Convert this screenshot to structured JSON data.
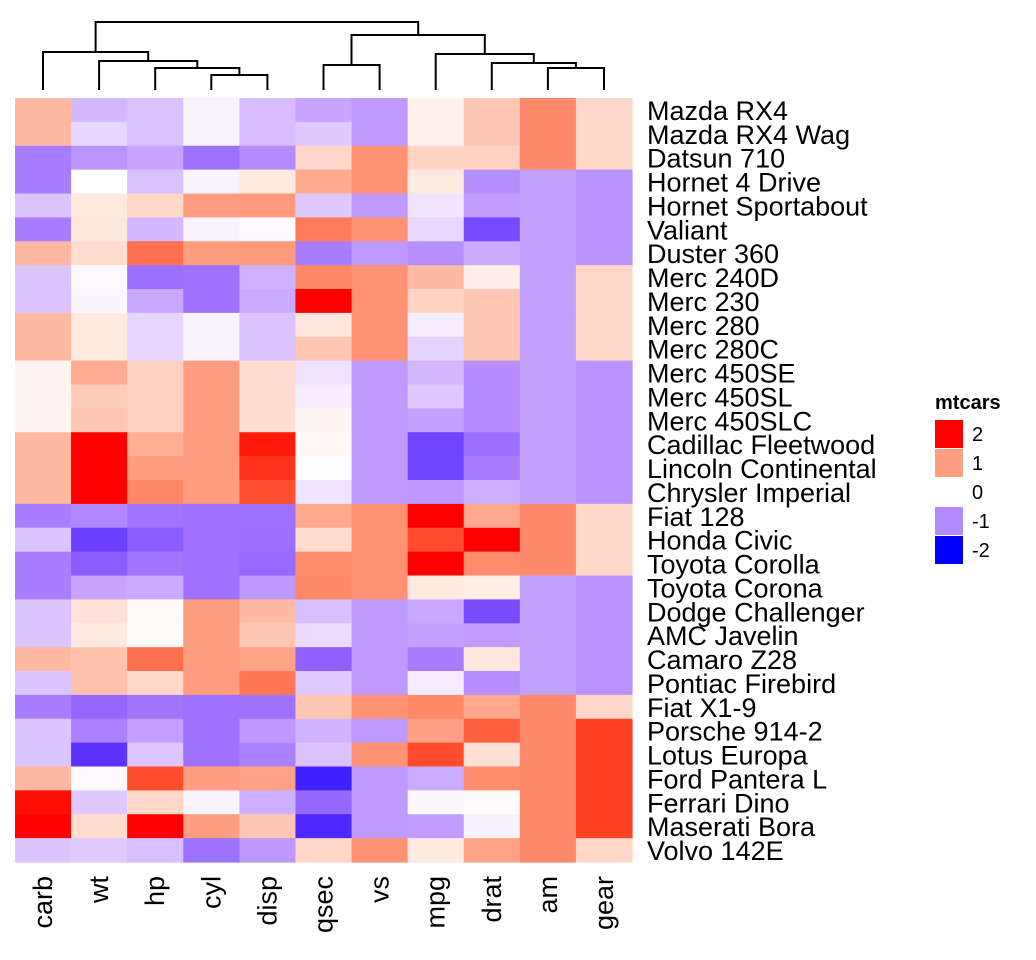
{
  "chart_data": {
    "type": "heatmap",
    "title": "",
    "columns": [
      "carb",
      "wt",
      "hp",
      "cyl",
      "disp",
      "qsec",
      "vs",
      "mpg",
      "drat",
      "am",
      "gear"
    ],
    "rows": [
      {
        "name": "Mazda RX4",
        "values": [
          0.74,
          -0.61,
          -0.54,
          -0.1,
          -0.57,
          -0.78,
          -0.87,
          0.15,
          0.57,
          1.19,
          0.42
        ]
      },
      {
        "name": "Mazda RX4 Wag",
        "values": [
          0.74,
          -0.35,
          -0.54,
          -0.1,
          -0.57,
          -0.46,
          -0.87,
          0.15,
          0.57,
          1.19,
          0.42
        ]
      },
      {
        "name": "Datsun 710",
        "values": [
          -1.12,
          -0.92,
          -0.78,
          -1.22,
          -0.99,
          0.43,
          1.12,
          0.45,
          0.47,
          1.19,
          0.42
        ]
      },
      {
        "name": "Hornet 4 Drive",
        "values": [
          -1.12,
          0.0,
          -0.54,
          -0.1,
          0.22,
          0.89,
          1.12,
          0.22,
          -0.97,
          -0.81,
          -0.93
        ]
      },
      {
        "name": "Hornet Sportabout",
        "values": [
          -0.5,
          0.23,
          0.41,
          1.01,
          1.04,
          -0.46,
          -0.87,
          -0.23,
          -0.84,
          -0.81,
          -0.93
        ]
      },
      {
        "name": "Valiant",
        "values": [
          -1.12,
          0.25,
          -0.61,
          -0.1,
          -0.05,
          1.33,
          1.12,
          -0.34,
          -1.56,
          -0.81,
          -0.93
        ]
      },
      {
        "name": "Duster 360",
        "values": [
          0.74,
          0.36,
          1.43,
          1.01,
          1.04,
          -1.12,
          -0.87,
          -0.96,
          -0.72,
          -0.81,
          -0.93
        ]
      },
      {
        "name": "Merc 240D",
        "values": [
          -0.5,
          -0.03,
          -1.24,
          -1.22,
          -0.68,
          1.2,
          1.12,
          0.72,
          0.18,
          -0.81,
          0.42
        ]
      },
      {
        "name": "Merc 230",
        "values": [
          -0.5,
          -0.07,
          -0.75,
          -1.22,
          -0.73,
          2.83,
          1.12,
          0.45,
          0.6,
          -0.81,
          0.42
        ]
      },
      {
        "name": "Merc 280",
        "values": [
          0.74,
          0.23,
          -0.35,
          -0.1,
          -0.51,
          0.25,
          1.12,
          -0.15,
          0.6,
          -0.81,
          0.42
        ]
      },
      {
        "name": "Merc 280C",
        "values": [
          0.74,
          0.23,
          -0.35,
          -0.1,
          -0.51,
          0.59,
          1.12,
          -0.38,
          0.6,
          -0.81,
          0.42
        ]
      },
      {
        "name": "Merc 450SE",
        "values": [
          0.12,
          0.87,
          0.49,
          1.01,
          0.36,
          -0.25,
          -0.87,
          -0.61,
          -0.98,
          -0.81,
          -0.93
        ]
      },
      {
        "name": "Merc 450SL",
        "values": [
          0.12,
          0.52,
          0.49,
          1.01,
          0.36,
          -0.14,
          -0.87,
          -0.47,
          -0.98,
          -0.81,
          -0.93
        ]
      },
      {
        "name": "Merc 450SLC",
        "values": [
          0.12,
          0.58,
          0.49,
          1.01,
          0.36,
          0.08,
          -0.87,
          -0.81,
          -0.98,
          -0.81,
          -0.93
        ]
      },
      {
        "name": "Cadillac Fleetwood",
        "values": [
          0.74,
          2.08,
          0.85,
          1.01,
          1.95,
          0.07,
          -0.87,
          -1.61,
          -1.25,
          -0.81,
          -0.93
        ]
      },
      {
        "name": "Lincoln Continental",
        "values": [
          0.74,
          2.26,
          1.0,
          1.01,
          1.85,
          -0.02,
          -0.87,
          -1.61,
          -1.12,
          -0.81,
          -0.93
        ]
      },
      {
        "name": "Chrysler Imperial",
        "values": [
          0.74,
          2.17,
          1.21,
          1.01,
          1.69,
          -0.24,
          -0.87,
          -0.89,
          -0.69,
          -0.81,
          -0.93
        ]
      },
      {
        "name": "Fiat 128",
        "values": [
          -1.12,
          -1.04,
          -1.19,
          -1.22,
          -1.23,
          0.9,
          1.12,
          2.04,
          0.9,
          1.19,
          0.42
        ]
      },
      {
        "name": "Honda Civic",
        "values": [
          -0.5,
          -1.64,
          -1.4,
          -1.22,
          -1.25,
          0.38,
          1.12,
          1.71,
          2.49,
          1.19,
          0.42
        ]
      },
      {
        "name": "Toyota Corolla",
        "values": [
          -1.12,
          -1.41,
          -1.19,
          -1.22,
          -1.29,
          1.15,
          1.12,
          2.29,
          1.17,
          1.19,
          0.42
        ]
      },
      {
        "name": "Toyota Corona",
        "values": [
          -1.12,
          -0.77,
          -0.72,
          -1.22,
          -0.89,
          1.21,
          1.12,
          0.23,
          0.19,
          -0.81,
          -0.93
        ]
      },
      {
        "name": "Dodge Challenger",
        "values": [
          -0.5,
          0.31,
          0.05,
          1.01,
          0.71,
          -0.55,
          -0.87,
          -0.76,
          -1.56,
          -0.81,
          -0.93
        ]
      },
      {
        "name": "AMC Javelin",
        "values": [
          -0.5,
          0.22,
          0.05,
          1.01,
          0.6,
          -0.31,
          -0.87,
          -0.81,
          -0.84,
          -0.81,
          -0.93
        ]
      },
      {
        "name": "Camaro Z28",
        "values": [
          0.74,
          0.64,
          1.43,
          1.01,
          0.96,
          -1.36,
          -0.87,
          -1.13,
          0.25,
          -0.81,
          -0.93
        ]
      },
      {
        "name": "Pontiac Firebird",
        "values": [
          -0.5,
          0.64,
          0.41,
          1.01,
          1.37,
          -0.45,
          -0.87,
          -0.15,
          -0.97,
          -0.81,
          -0.93
        ]
      },
      {
        "name": "Fiat X1-9",
        "values": [
          -1.12,
          -1.31,
          -1.19,
          -1.22,
          -1.22,
          0.59,
          1.12,
          1.2,
          0.9,
          1.19,
          0.42
        ]
      },
      {
        "name": "Porsche 914-2",
        "values": [
          -0.5,
          -1.1,
          -0.82,
          -1.22,
          -0.89,
          -0.64,
          -0.87,
          0.98,
          1.56,
          1.19,
          1.78
        ]
      },
      {
        "name": "Lotus Europa",
        "values": [
          -0.5,
          -1.74,
          -0.49,
          -1.22,
          -1.09,
          -0.53,
          1.12,
          1.71,
          0.33,
          1.19,
          1.78
        ]
      },
      {
        "name": "Ford Pantera L",
        "values": [
          0.74,
          -0.05,
          1.71,
          1.01,
          0.97,
          -1.87,
          -0.87,
          -0.71,
          1.17,
          1.19,
          1.78
        ]
      },
      {
        "name": "Ferrari Dino",
        "values": [
          1.98,
          -0.46,
          0.41,
          -0.1,
          -0.69,
          -1.31,
          -0.87,
          -0.06,
          0.04,
          1.19,
          1.78
        ]
      },
      {
        "name": "Maserati Bora",
        "values": [
          3.21,
          0.36,
          2.75,
          1.01,
          0.57,
          -1.82,
          -0.87,
          -0.84,
          -0.11,
          1.19,
          1.78
        ]
      },
      {
        "name": "Volvo 142E",
        "values": [
          -0.5,
          -0.45,
          -0.55,
          -1.22,
          -0.89,
          0.43,
          1.12,
          0.22,
          0.96,
          1.19,
          0.42
        ]
      }
    ],
    "color_scale": {
      "breaks": [
        -2,
        0,
        2
      ],
      "colors": [
        "#0000FF",
        "#FFFFFF",
        "#FF0000"
      ]
    },
    "legend": {
      "title": "mtcars",
      "placement": "right",
      "entries": [
        {
          "label": "2",
          "value": 2
        },
        {
          "label": "1",
          "value": 1
        },
        {
          "label": "0",
          "value": 0
        },
        {
          "label": "-1",
          "value": -1
        },
        {
          "label": "-2",
          "value": -2
        }
      ]
    },
    "column_dendrogram": {
      "merges": [
        {
          "id": "m1",
          "left": "cyl",
          "right": "disp",
          "level": 1
        },
        {
          "id": "m2",
          "left": "hp",
          "right": "m1",
          "level": 2
        },
        {
          "id": "m3",
          "left": "wt",
          "right": "m2",
          "level": 3
        },
        {
          "id": "m4",
          "left": "carb",
          "right": "m3",
          "level": 4
        },
        {
          "id": "m5",
          "left": "qsec",
          "right": "vs",
          "level": 2
        },
        {
          "id": "m6",
          "left": "am",
          "right": "gear",
          "level": 1
        },
        {
          "id": "m7",
          "left": "drat",
          "right": "m6",
          "level": 2
        },
        {
          "id": "m8",
          "left": "mpg",
          "right": "m7",
          "level": 4
        },
        {
          "id": "m9",
          "left": "m5",
          "right": "m8",
          "level": 6
        },
        {
          "id": "m10",
          "left": "m4",
          "right": "m9",
          "level": 8
        }
      ]
    }
  }
}
